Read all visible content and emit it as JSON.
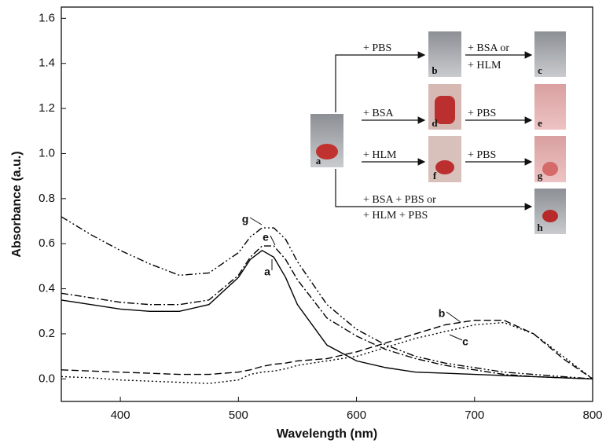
{
  "chart_data": {
    "type": "line",
    "xlabel": "Wavelength (nm)",
    "ylabel": "Absorbance (a.u.)",
    "xlim": [
      350,
      800
    ],
    "xticks": [
      400,
      500,
      600,
      700,
      800
    ],
    "ylim": [
      -0.1,
      1.65
    ],
    "yticks": [
      {
        "value": 0,
        "label": "0.0"
      },
      0.2,
      0.4,
      0.6,
      0.8,
      {
        "value": 1,
        "label": "1.0"
      },
      1.2,
      1.4,
      1.6
    ],
    "x": [
      350,
      375,
      400,
      425,
      450,
      475,
      500,
      510,
      520,
      530,
      540,
      550,
      575,
      600,
      625,
      650,
      675,
      700,
      725,
      750,
      775,
      800
    ],
    "series": [
      {
        "name": "a",
        "color": "#000000",
        "linestyle": "solid",
        "values": [
          0.35,
          0.33,
          0.31,
          0.3,
          0.3,
          0.33,
          0.45,
          0.53,
          0.57,
          0.54,
          0.45,
          0.33,
          0.15,
          0.08,
          0.05,
          0.03,
          0.025,
          0.02,
          0.015,
          0.01,
          0.005,
          0
        ]
      },
      {
        "name": "b",
        "color": "#000000",
        "linestyle": "dashed",
        "values": [
          0.04,
          0.035,
          0.03,
          0.025,
          0.02,
          0.02,
          0.03,
          0.04,
          0.055,
          0.065,
          0.07,
          0.08,
          0.09,
          0.12,
          0.16,
          0.2,
          0.24,
          0.26,
          0.26,
          0.2,
          0.09,
          0
        ]
      },
      {
        "name": "c",
        "color": "#000000",
        "linestyle": "dotted",
        "values": [
          0.01,
          0.005,
          -0.005,
          -0.01,
          -0.015,
          -0.02,
          -0.005,
          0.02,
          0.03,
          0.035,
          0.045,
          0.06,
          0.08,
          0.1,
          0.14,
          0.18,
          0.21,
          0.24,
          0.25,
          0.2,
          0.1,
          0
        ]
      },
      {
        "name": "e",
        "color": "#000000",
        "linestyle": "dashdot",
        "values": [
          0.38,
          0.36,
          0.34,
          0.33,
          0.33,
          0.35,
          0.46,
          0.54,
          0.59,
          0.59,
          0.53,
          0.44,
          0.27,
          0.19,
          0.13,
          0.09,
          0.06,
          0.04,
          0.02,
          0.01,
          0.005,
          0
        ]
      },
      {
        "name": "g",
        "color": "#000000",
        "linestyle": "dashdotdot",
        "values": [
          0.72,
          0.64,
          0.57,
          0.51,
          0.46,
          0.47,
          0.56,
          0.63,
          0.67,
          0.67,
          0.62,
          0.52,
          0.33,
          0.22,
          0.15,
          0.1,
          0.07,
          0.05,
          0.03,
          0.02,
          0.01,
          0
        ]
      }
    ],
    "inset": {
      "tubes": [
        "a",
        "b",
        "c",
        "d",
        "e",
        "f",
        "g",
        "h"
      ],
      "steps": [
        "+ PBS",
        "+ BSA or",
        "+ HLM",
        "+ BSA",
        "+ PBS",
        "+ HLM",
        "+ PBS",
        "+ BSA + PBS or",
        "+ HLM + PBS"
      ]
    }
  }
}
